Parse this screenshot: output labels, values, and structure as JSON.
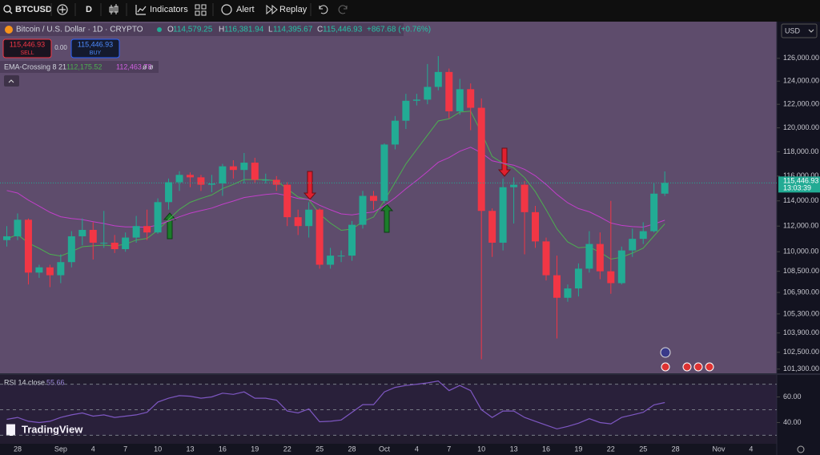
{
  "toolbar": {
    "symbol": "BTCUSD",
    "interval": "D",
    "indicators": "Indicators",
    "alert": "Alert",
    "replay": "Replay"
  },
  "legend": {
    "title": "Bitcoin / U.S. Dollar · 1D · CRYPTO",
    "o_label": "O",
    "o": "114,579.25",
    "h_label": "H",
    "h": "116,381.94",
    "l_label": "L",
    "l": "114,395.67",
    "c_label": "C",
    "c": "115,446.93",
    "change": "+867.68 (+0.76%)"
  },
  "trade": {
    "sell_price": "115,446.93",
    "sell": "SELL",
    "spread": "0.00",
    "buy_price": "115,446.93",
    "buy": "BUY"
  },
  "currency": "USD",
  "branding": "TradingView",
  "chart_data": [
    {
      "type": "candlestick",
      "log": true,
      "grid": false,
      "up_color": "#22ab94",
      "down_color": "#f23645",
      "categories": [
        null,
        "28",
        null,
        null,
        null,
        "Sep",
        null,
        null,
        "4",
        null,
        null,
        "7",
        null,
        null,
        "10",
        null,
        null,
        "13",
        null,
        null,
        "16",
        null,
        null,
        "19",
        null,
        null,
        "22",
        null,
        null,
        "25",
        null,
        null,
        "28",
        null,
        null,
        "Oct",
        null,
        null,
        "4",
        null,
        null,
        "7",
        null,
        null,
        "10",
        null,
        null,
        "13",
        null,
        null,
        "16",
        null,
        null,
        "19",
        null,
        null,
        "22",
        null,
        null,
        "25",
        null,
        null,
        "28",
        null,
        null,
        null,
        "Nov",
        null,
        null,
        "4",
        null,
        null
      ],
      "open": [
        110900,
        111200,
        112500,
        108400,
        108800,
        108200,
        109200,
        111200,
        111700,
        110700,
        110700,
        110200,
        111100,
        112000,
        111500,
        113900,
        115500,
        116100,
        115900,
        115300,
        115400,
        116800,
        116500,
        117100,
        115700,
        115700,
        115300,
        112700,
        112000,
        113300,
        109000,
        109700,
        109700,
        112100,
        114400,
        114000,
        118600,
        120600,
        122300,
        122400,
        123500,
        124800,
        121400,
        123300,
        121700,
        113200,
        110700,
        115100,
        115300,
        113100,
        110800,
        108200,
        106500,
        107200,
        108700,
        110600,
        108500,
        107600,
        110100,
        111000,
        111600,
        114579.25,
        null,
        null,
        null,
        null,
        null,
        null,
        null,
        null,
        null,
        null
      ],
      "high": [
        112000,
        113000,
        112600,
        109000,
        109000,
        109800,
        111600,
        112600,
        112300,
        113200,
        111300,
        111500,
        112800,
        113300,
        114200,
        115800,
        116400,
        116300,
        116100,
        116100,
        117000,
        117300,
        117900,
        117500,
        116200,
        116000,
        115500,
        113300,
        113900,
        113400,
        110300,
        110100,
        112400,
        114800,
        114800,
        118700,
        121000,
        122900,
        122900,
        125500,
        126200,
        125100,
        124200,
        123800,
        122500,
        113400,
        115800,
        115900,
        115600,
        113600,
        111100,
        109700,
        107500,
        109100,
        111600,
        111500,
        114000,
        110400,
        111800,
        112300,
        115400,
        116381.94,
        null,
        null,
        null,
        null,
        null,
        null,
        null,
        null,
        null,
        null
      ],
      "low": [
        110400,
        110900,
        107500,
        108000,
        107300,
        107600,
        108800,
        110500,
        109400,
        110300,
        109900,
        110000,
        110700,
        110900,
        111400,
        113300,
        114800,
        115100,
        114800,
        114700,
        114400,
        115800,
        115400,
        115400,
        115400,
        114800,
        112000,
        111300,
        111100,
        108700,
        108700,
        109200,
        109300,
        111800,
        113300,
        113800,
        118200,
        119900,
        121900,
        122000,
        123200,
        120800,
        121100,
        119800,
        102000,
        109600,
        110100,
        112200,
        109800,
        110300,
        107800,
        103500,
        106200,
        106600,
        108400,
        107900,
        106800,
        107500,
        109600,
        110600,
        111500,
        114395.67,
        null,
        null,
        null,
        null,
        null,
        null,
        null,
        null,
        null,
        null
      ],
      "close": [
        111200,
        112500,
        108400,
        108800,
        108200,
        109200,
        111200,
        111700,
        110700,
        110700,
        110200,
        111100,
        112000,
        111500,
        113900,
        115500,
        116100,
        115900,
        115300,
        115400,
        116800,
        116500,
        117100,
        115700,
        115700,
        115300,
        112700,
        112000,
        113300,
        109000,
        109700,
        109700,
        112100,
        114400,
        114000,
        118600,
        120600,
        122300,
        122400,
        123500,
        124800,
        121400,
        123300,
        121700,
        113200,
        110700,
        115100,
        115300,
        113100,
        110800,
        108200,
        106500,
        107200,
        108700,
        110600,
        108500,
        107600,
        110100,
        111000,
        111600,
        114579,
        115446.93,
        null,
        null,
        null,
        null,
        null,
        null,
        null,
        null,
        null,
        null
      ],
      "last_price_label": "115,446.93",
      "countdown": "13:03:39",
      "ylim": [
        101000,
        129000
      ],
      "yticks": [
        {
          "value": 126000,
          "label": "126,000.00"
        },
        {
          "value": 124000,
          "label": "124,000.00"
        },
        {
          "value": 122000,
          "label": "122,000.00"
        },
        {
          "value": 120000,
          "label": "120,000.00"
        },
        {
          "value": 118000,
          "label": "118,000.00"
        },
        {
          "value": 116000,
          "label": "116,000.00"
        },
        {
          "value": 114000,
          "label": "114,000.00"
        },
        {
          "value": 112000,
          "label": "112,000.00"
        },
        {
          "value": 110000,
          "label": "110,000.00"
        },
        {
          "value": 108500,
          "label": "108,500.00"
        },
        {
          "value": 106900,
          "label": "106,900.00"
        },
        {
          "value": 105300,
          "label": "105,300.00"
        },
        {
          "value": 103900,
          "label": "103,900.00"
        },
        {
          "value": 102500,
          "label": "102,500.00"
        },
        {
          "value": 101300,
          "label": "101,300.00"
        }
      ],
      "indicator": {
        "name": "EMA-Crossing 8 21",
        "flags": "ø ø",
        "series": [
          {
            "color": "#4caf50",
            "last_label": "112,175.52",
            "values": [
              111000,
              111333,
              110682,
              110264,
              109806,
              109671,
              110011,
              110386,
              110456,
              110510,
              110441,
              110587,
              110901,
              111034,
              111671,
              112522,
              113317,
              113891,
              114204,
              114470,
              114988,
              115324,
              115719,
              115715,
              115712,
              115620,
              114971,
              114311,
              114086,
              112956,
              112232,
              111669,
              111765,
              112351,
              112717,
              114024,
              115485,
              116999,
              118199,
              119377,
              120582,
              120764,
              121328,
              121411,
              119586,
              117611,
              117053,
              116663,
              115871,
              114744,
              113290,
              111781,
              110763,
              110305,
              110371,
              109955,
              109432,
              109580,
              109896,
              110275,
              111231,
              112175.52,
              null,
              null,
              null,
              null,
              null,
              null,
              null,
              null,
              null,
              null
            ]
          },
          {
            "color": "#c13fc9",
            "last_label": "112,463.78",
            "values": [
              114836,
              114624,
              114058,
              113580,
              113091,
              112737,
              112597,
              112515,
              112350,
              112200,
              112018,
              111935,
              111941,
              111901,
              112083,
              112394,
              112731,
              113019,
              113226,
              113424,
              113731,
              113983,
              114266,
              114396,
              114515,
              114586,
              114415,
              114195,
              114114,
              113649,
              113290,
              112964,
              112885,
              113023,
              113112,
              113611,
              114246,
              114978,
              115653,
              116366,
              117133,
              117521,
              118046,
              118378,
              117907,
              117252,
              117056,
              116896,
              116551,
              116028,
              115316,
              114515,
              113850,
              113382,
              113129,
              112708,
              112244,
              112049,
              111954,
              111922,
              112164,
              112463.78,
              null,
              null,
              null,
              null,
              null,
              null,
              null,
              null,
              null,
              null
            ]
          }
        ]
      }
    },
    {
      "type": "line",
      "title": "RSI 14 close",
      "color": "#7e57c2",
      "last_label": "55.66",
      "values": [
        42.5,
        44,
        41,
        40,
        41,
        44,
        46,
        47.5,
        45,
        46,
        44,
        45,
        46,
        48,
        56,
        59,
        61,
        60.6,
        59,
        60,
        63,
        62,
        64,
        59,
        59,
        57.5,
        49,
        47.5,
        50.6,
        40.6,
        41,
        42,
        48,
        54,
        54,
        64,
        67.5,
        69,
        70,
        71,
        72.5,
        65,
        69,
        65,
        50,
        44,
        49,
        49,
        44,
        41,
        38,
        35,
        37,
        39.5,
        43,
        40,
        39,
        44,
        46,
        48,
        53.8,
        55.66,
        null,
        null,
        null,
        null,
        null,
        null,
        null,
        null,
        null,
        null
      ],
      "bands": [
        70,
        50,
        30
      ],
      "ylim": [
        24,
        76
      ],
      "yticks": [
        {
          "value": 60,
          "label": "60.00"
        },
        {
          "value": 40,
          "label": "40.00"
        }
      ]
    }
  ]
}
